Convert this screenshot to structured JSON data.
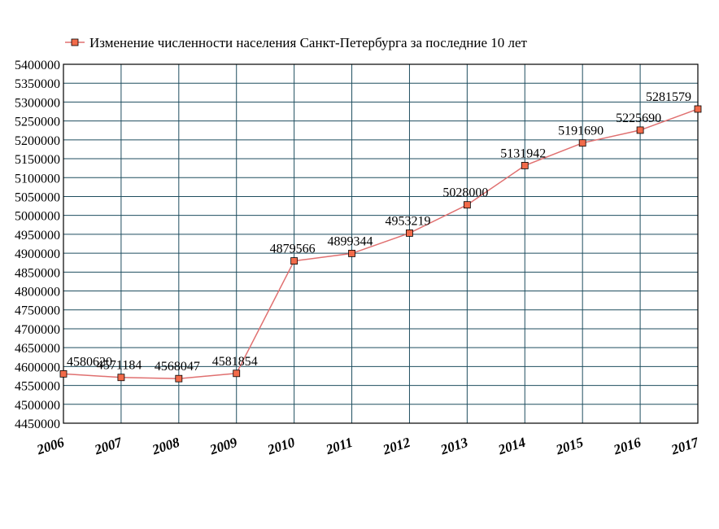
{
  "chart_data": {
    "type": "line",
    "title": "",
    "xlabel": "",
    "ylabel": "",
    "x": [
      "2006",
      "2007",
      "2008",
      "2009",
      "2010",
      "2011",
      "2012",
      "2013",
      "2014",
      "2015",
      "2016",
      "2017"
    ],
    "series": [
      {
        "name": "Изменение численности населения Санкт-Петербурга за последние 10 лет",
        "values": [
          4580620,
          4571184,
          4568047,
          4581854,
          4879566,
          4899344,
          4953219,
          5028000,
          5131942,
          5191690,
          5225690,
          5281579
        ],
        "labels": [
          "4580620",
          "4571184",
          "4568047",
          "4581854",
          "4879566",
          "4899344",
          "4953219",
          "5028000",
          "5131942",
          "5191690",
          "5225690",
          "5281579"
        ],
        "line_color": "#e07070",
        "marker_color": "#f26b4a"
      }
    ],
    "ylim": [
      4450000,
      5400000
    ],
    "yticks": [
      "5400000",
      "5350000",
      "5300000",
      "5250000",
      "5200000",
      "5150000",
      "5100000",
      "5050000",
      "5000000",
      "4950000",
      "4900000",
      "4850000",
      "4800000",
      "4750000",
      "4700000",
      "4650000",
      "4600000",
      "4550000",
      "4500000",
      "4450000"
    ],
    "grid": true,
    "grid_color": "#1f4e5f",
    "legend_position": "top"
  }
}
